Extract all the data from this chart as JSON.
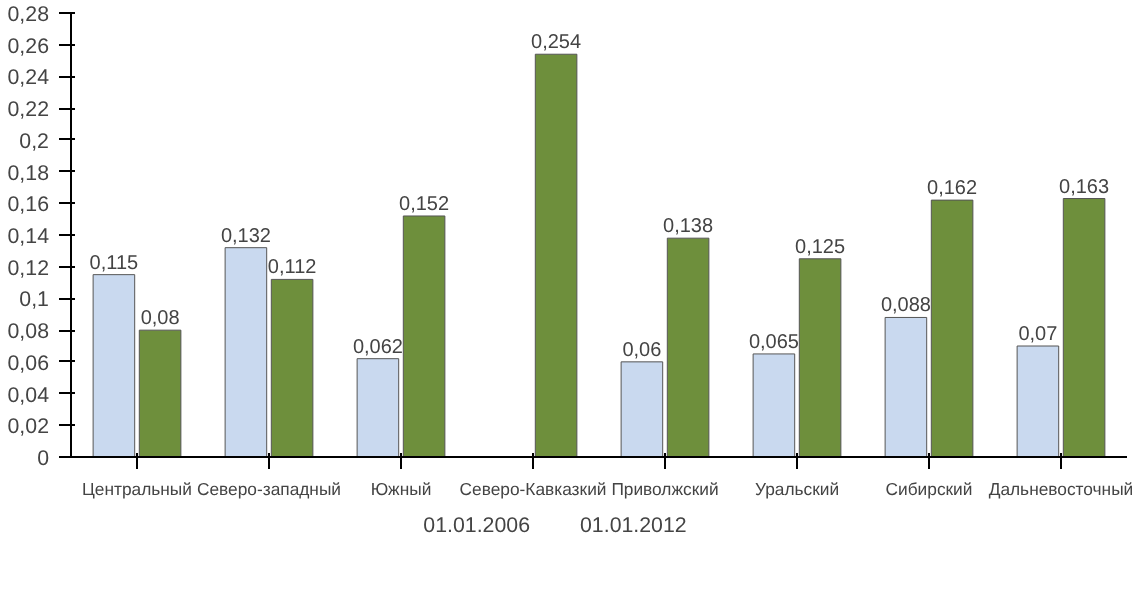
{
  "chart_data": {
    "type": "bar",
    "categories": [
      "Центральный",
      "Северо-западный",
      "Южный",
      "Северо-Кавказкий",
      "Приволжский",
      "Уральский",
      "Сибирский",
      "Дальневосточный"
    ],
    "series": [
      {
        "name": "01.01.2006",
        "color": "#c9d9ef",
        "values": [
          0.115,
          0.132,
          0.062,
          null,
          0.06,
          0.065,
          0.088,
          0.07
        ],
        "value_labels": [
          "0,115",
          "0,132",
          "0,062",
          null,
          "0,06",
          "0,065",
          "0,088",
          "0,07"
        ]
      },
      {
        "name": "01.01.2012",
        "color": "#6e8f3c",
        "values": [
          0.08,
          0.112,
          0.152,
          0.254,
          0.138,
          0.125,
          0.162,
          0.163
        ],
        "value_labels": [
          "0,08",
          "0,112",
          "0,152",
          "0,254",
          "0,138",
          "0,125",
          "0,162",
          "0,163"
        ]
      }
    ],
    "ylim": [
      0,
      0.28
    ],
    "yticks": [
      {
        "value": 0,
        "label": "0"
      },
      {
        "value": 0.02,
        "label": "0,02"
      },
      {
        "value": 0.04,
        "label": "0,04"
      },
      {
        "value": 0.06,
        "label": "0,06"
      },
      {
        "value": 0.08,
        "label": "0,08"
      },
      {
        "value": 0.1,
        "label": "0,1"
      },
      {
        "value": 0.12,
        "label": "0,12"
      },
      {
        "value": 0.14,
        "label": "0,14"
      },
      {
        "value": 0.16,
        "label": "0,16"
      },
      {
        "value": 0.18,
        "label": "0,18"
      },
      {
        "value": 0.2,
        "label": "0,2"
      },
      {
        "value": 0.22,
        "label": "0,22"
      },
      {
        "value": 0.24,
        "label": "0,24"
      },
      {
        "value": 0.26,
        "label": "0,26"
      },
      {
        "value": 0.28,
        "label": "0,28"
      }
    ],
    "grid": false,
    "legend": "bottom"
  }
}
